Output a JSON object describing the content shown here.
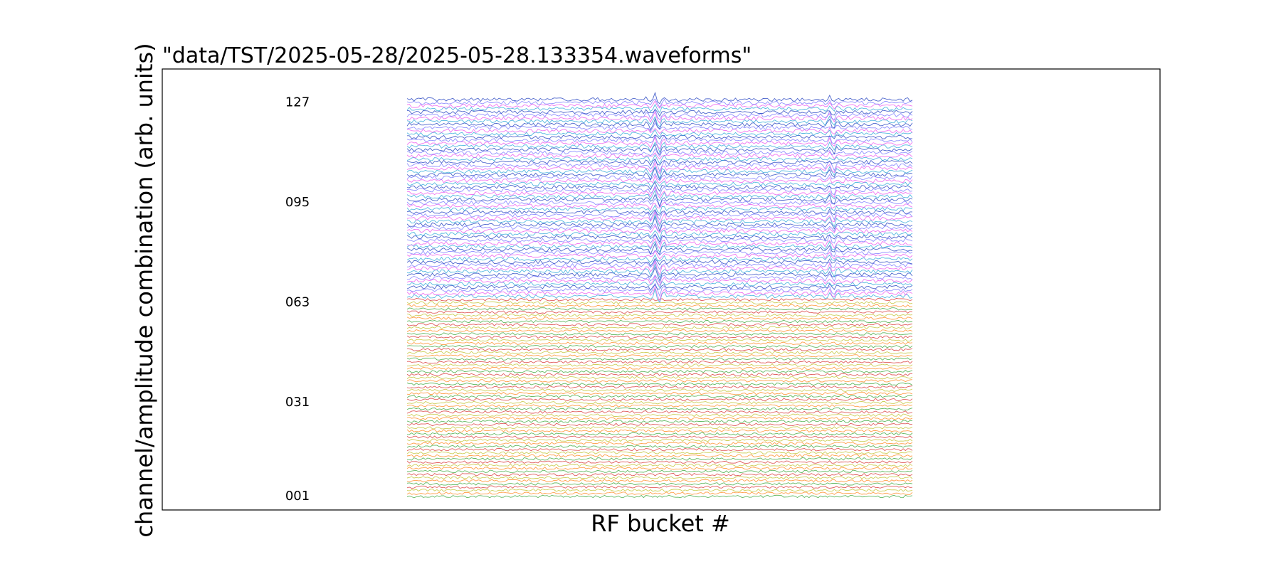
{
  "chart_data": {
    "type": "line",
    "title": "\"data/TST/2025-05-28/2025-05-28.133354.waveforms\"",
    "xlabel": "RF bucket #",
    "ylabel": "channel/amplitude combination (arb. units)",
    "x_ticks_shown": false,
    "grid": false,
    "legend": "none",
    "channel_count": 128,
    "y_tick_labels": [
      {
        "channel": 1,
        "label": "001"
      },
      {
        "channel": 31,
        "label": "031"
      },
      {
        "channel": 63,
        "label": "063"
      },
      {
        "channel": 95,
        "label": "095"
      },
      {
        "channel": 127,
        "label": "127"
      }
    ],
    "lower_half_colors": [
      "#d62728",
      "#2ca02c",
      "#ff7f0e",
      "#bcbd22"
    ],
    "upper_half_colors": [
      "#1f3fbf",
      "#2aa8d8",
      "#ee55ee",
      "#7777ff"
    ],
    "pulse_bursts_x_fraction": [
      0.495,
      0.84
    ]
  }
}
